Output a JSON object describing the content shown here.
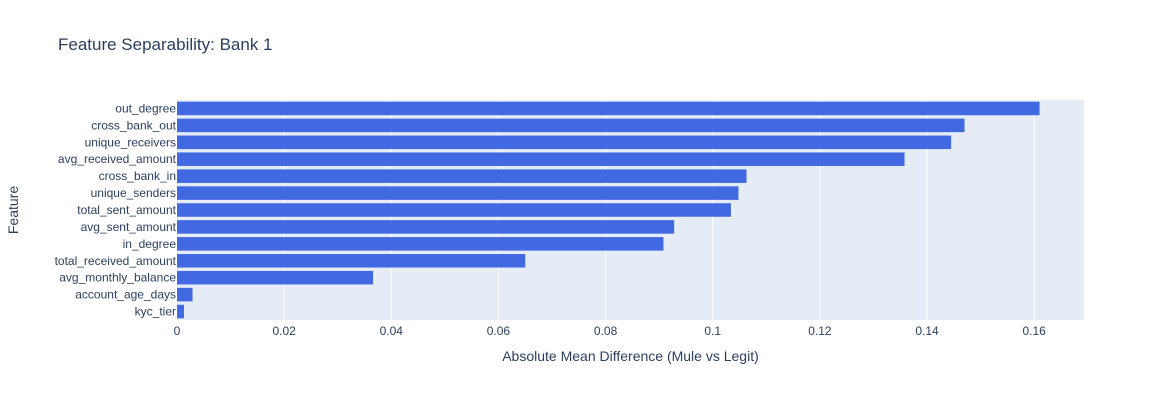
{
  "chart_data": {
    "type": "bar",
    "orientation": "horizontal",
    "title": "Feature Separability: Bank 1",
    "xlabel": "Absolute Mean Difference (Mule vs Legit)",
    "ylabel": "Feature",
    "xlim": [
      0,
      0.1693
    ],
    "xticks": [
      0,
      0.02,
      0.04,
      0.06,
      0.08,
      0.1,
      0.12,
      0.14,
      0.16
    ],
    "xtick_labels": [
      "0",
      "0.02",
      "0.04",
      "0.06",
      "0.08",
      "0.1",
      "0.12",
      "0.14",
      "0.16"
    ],
    "grid": true,
    "colors": {
      "bar": "#4169e1",
      "plot_bg": "#e5ecf6",
      "grid": "#ffffff",
      "text": "#2a3f5f"
    },
    "categories": [
      "out_degree",
      "cross_bank_out",
      "unique_receivers",
      "avg_received_amount",
      "cross_bank_in",
      "unique_senders",
      "total_sent_amount",
      "avg_sent_amount",
      "in_degree",
      "total_received_amount",
      "avg_monthly_balance",
      "account_age_days",
      "kyc_tier"
    ],
    "values": [
      0.161,
      0.147,
      0.1445,
      0.1358,
      0.1063,
      0.1048,
      0.1034,
      0.0928,
      0.0908,
      0.065,
      0.0366,
      0.0029,
      0.0013
    ]
  }
}
